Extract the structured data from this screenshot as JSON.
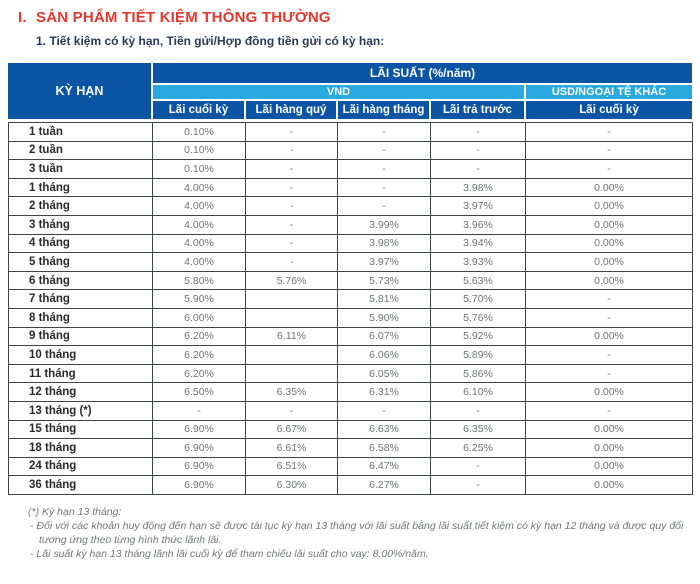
{
  "page": {
    "title_index": "I.",
    "title_text": "SẢN PHẨM TIẾT KIỆM THÔNG THƯỜNG",
    "subtitle": "1. Tiết kiệm có kỳ hạn, Tiền gửi/Hợp đồng tiền gửi có kỳ hạn:"
  },
  "colors": {
    "accent_red": "#E4372E",
    "header_navy": "#0B55A4",
    "header_light_blue": "#2AA9E0",
    "value_gray": "#707276"
  },
  "table": {
    "header": {
      "term_label": "KỲ HẠN",
      "rate_group_label": "LÃI SUẤT (%/năm)",
      "currency_groups": [
        {
          "label": "VND"
        },
        {
          "label": "USD/NGOẠI TỆ KHÁC"
        }
      ],
      "sub_columns": [
        "Lãi cuối kỳ",
        "Lãi hàng quý",
        "Lãi hàng tháng",
        "Lãi trả trước",
        "Lãi cuối kỳ"
      ]
    },
    "rows": [
      {
        "term": "1 tuần",
        "values": [
          "0.10%",
          "-",
          "-",
          "-",
          "-"
        ]
      },
      {
        "term": "2 tuần",
        "values": [
          "0.10%",
          "-",
          "-",
          "-",
          "-"
        ]
      },
      {
        "term": "3 tuần",
        "values": [
          "0.10%",
          "-",
          "-",
          "-",
          "-"
        ]
      },
      {
        "term": "1 tháng",
        "values": [
          "4.00%",
          "-",
          "-",
          "3.98%",
          "0.00%"
        ]
      },
      {
        "term": "2 tháng",
        "values": [
          "4.00%",
          "-",
          "-",
          "3.97%",
          "0.00%"
        ]
      },
      {
        "term": "3 tháng",
        "values": [
          "4.00%",
          "-",
          "3.99%",
          "3.96%",
          "0.00%"
        ]
      },
      {
        "term": "4 tháng",
        "values": [
          "4.00%",
          "-",
          "3.98%",
          "3.94%",
          "0.00%"
        ]
      },
      {
        "term": "5 tháng",
        "values": [
          "4.00%",
          "-",
          "3.97%",
          "3.93%",
          "0.00%"
        ]
      },
      {
        "term": "6 tháng",
        "values": [
          "5.80%",
          "5.76%",
          "5.73%",
          "5.63%",
          "0.00%"
        ]
      },
      {
        "term": "7 tháng",
        "values": [
          "5.90%",
          "",
          "5.81%",
          "5.70%",
          "-"
        ]
      },
      {
        "term": "8 tháng",
        "values": [
          "6.00%",
          "",
          "5.90%",
          "5.76%",
          "-"
        ]
      },
      {
        "term": "9 tháng",
        "values": [
          "6.20%",
          "6.11%",
          "6.07%",
          "5.92%",
          "0.00%"
        ]
      },
      {
        "term": "10 tháng",
        "values": [
          "6.20%",
          "",
          "6.06%",
          "5.89%",
          "-"
        ]
      },
      {
        "term": "11 tháng",
        "values": [
          "6.20%",
          "",
          "6.05%",
          "5.86%",
          "-"
        ]
      },
      {
        "term": "12 tháng",
        "values": [
          "6.50%",
          "6.35%",
          "6.31%",
          "6.10%",
          "0.00%"
        ]
      },
      {
        "term": "13 tháng (*)",
        "values": [
          "-",
          "-",
          "-",
          "-",
          "-"
        ]
      },
      {
        "term": "15 tháng",
        "values": [
          "6.90%",
          "6.67%",
          "6.63%",
          "6.35%",
          "0.00%"
        ]
      },
      {
        "term": "18 tháng",
        "values": [
          "6.90%",
          "6.61%",
          "6.58%",
          "6.25%",
          "0.00%"
        ]
      },
      {
        "term": "24 tháng",
        "values": [
          "6.90%",
          "6.51%",
          "6.47%",
          "-",
          "0.00%"
        ]
      },
      {
        "term": "36 tháng",
        "values": [
          "6.90%",
          "6.30%",
          "6.27%",
          "-",
          "0.00%"
        ]
      }
    ]
  },
  "footnote": {
    "title": "(*) Kỳ hạn 13 tháng:",
    "items": [
      "- Đối với các khoản huy động đến hạn sẽ được tái tục kỳ hạn 13 tháng với lãi suất bằng lãi suất tiết kiệm có kỳ hạn 12 tháng và được quy đổi tương ứng theo từng hình thức lãnh lãi.",
      "- Lãi suất kỳ hạn 13 tháng lãnh lãi cuối kỳ để tham chiếu lãi suất cho vay: 8.00%/năm."
    ]
  }
}
